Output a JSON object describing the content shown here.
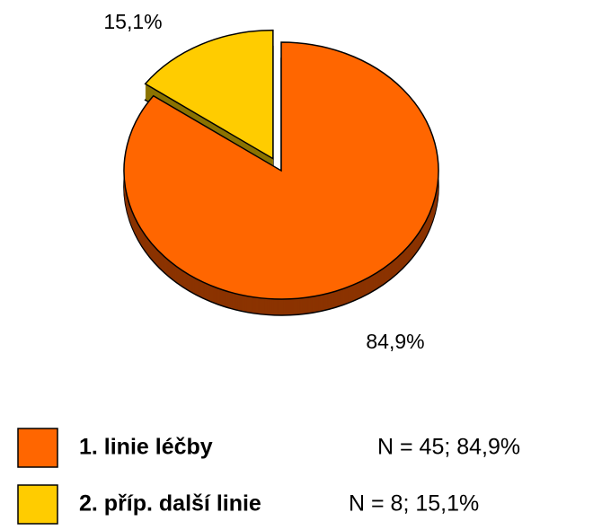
{
  "chart_data": {
    "type": "pie",
    "categories": [
      "1. linie léčby",
      "2. příp. další linie"
    ],
    "values": [
      84.9,
      15.1
    ],
    "value_labels": [
      "84,9%",
      "15,1%"
    ],
    "legend_details": [
      "N = 45; 84,9%",
      "N = 8; 15,1%"
    ],
    "colors": [
      "#ff6600",
      "#ffcc00"
    ],
    "side_colors": [
      "#8b3300",
      "#8b7300"
    ],
    "exploded": [
      false,
      true
    ]
  }
}
